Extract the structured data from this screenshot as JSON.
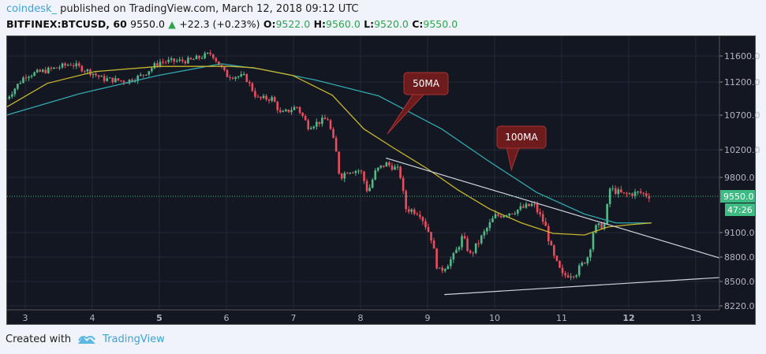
{
  "header": {
    "user": "coindesk_",
    "published": "published on TradingView.com, March 12, 2018 09:12 UTC",
    "symbol": "BITFINEX:BTCUSD, 60",
    "last": "9550.0",
    "change": "+22.3 (+0.23%)",
    "o_label": "O:",
    "o": "9522.0",
    "h_label": "H:",
    "h": "9560.0",
    "l_label": "L:",
    "l": "9520.0",
    "c_label": "C:",
    "c": "9550.0"
  },
  "footer": {
    "created_with": "Created with",
    "brand": "TradingView"
  },
  "colors": {
    "background": "#131722",
    "up": "#53b987",
    "down": "#eb4d5c",
    "ma50": "#c8b62c",
    "ma100": "#30a8b0",
    "annotation": "#6e1b1e",
    "last_price": "#3dbb83"
  },
  "chart_data": {
    "type": "candlestick",
    "interval": "60",
    "x_ticks": [
      "3",
      "4",
      "5",
      "6",
      "7",
      "8",
      "9",
      "10",
      "11",
      "12",
      "13"
    ],
    "y_ticks": [
      "11600.0",
      "11200.0",
      "10700.0",
      "10200.0",
      "9800.0",
      "9100.0",
      "8800.0",
      "8500.0",
      "8220.0"
    ],
    "last_price_label": "9550.0",
    "countdown_label": "47:26",
    "grid": true,
    "price_path": [
      [
        2.72,
        10950
      ],
      [
        3,
        11300
      ],
      [
        3.33,
        11380
      ],
      [
        3.68,
        11480
      ],
      [
        4,
        11340
      ],
      [
        4.15,
        11250
      ],
      [
        4.51,
        11210
      ],
      [
        4.74,
        11300
      ],
      [
        5,
        11510
      ],
      [
        5.46,
        11530
      ],
      [
        5.78,
        11640
      ],
      [
        6,
        11300
      ],
      [
        6.28,
        11280
      ],
      [
        6.46,
        10950
      ],
      [
        6.69,
        10950
      ],
      [
        6.81,
        10710
      ],
      [
        7.05,
        10830
      ],
      [
        7.22,
        10540
      ],
      [
        7.51,
        10650
      ],
      [
        7.63,
        10200
      ],
      [
        7.69,
        9800
      ],
      [
        7.81,
        9900
      ],
      [
        8,
        9900
      ],
      [
        8.11,
        9600
      ],
      [
        8.23,
        9900
      ],
      [
        8.38,
        10000
      ],
      [
        8.58,
        9900
      ],
      [
        8.67,
        9400
      ],
      [
        8.88,
        9350
      ],
      [
        9.05,
        9050
      ],
      [
        9.16,
        8610
      ],
      [
        9.28,
        8700
      ],
      [
        9.4,
        8820
      ],
      [
        9.52,
        9050
      ],
      [
        9.64,
        8820
      ],
      [
        9.81,
        9050
      ],
      [
        10,
        9300
      ],
      [
        10.22,
        9350
      ],
      [
        10.4,
        9400
      ],
      [
        10.58,
        9450
      ],
      [
        10.75,
        9200
      ],
      [
        10.87,
        8820
      ],
      [
        11.01,
        8570
      ],
      [
        11.22,
        8610
      ],
      [
        11.4,
        8820
      ],
      [
        11.48,
        9150
      ],
      [
        11.64,
        9200
      ],
      [
        11.72,
        9650
      ],
      [
        11.93,
        9570
      ],
      [
        12.16,
        9600
      ],
      [
        12.34,
        9550
      ]
    ],
    "ma50": [
      [
        2.72,
        10820
      ],
      [
        3.33,
        11180
      ],
      [
        4.04,
        11360
      ],
      [
        5,
        11440
      ],
      [
        6.06,
        11440
      ],
      [
        6.4,
        11420
      ],
      [
        6.99,
        11300
      ],
      [
        7.58,
        11000
      ],
      [
        8.05,
        10500
      ],
      [
        8.52,
        10210
      ],
      [
        8.99,
        9930
      ],
      [
        9.46,
        9630
      ],
      [
        9.93,
        9390
      ],
      [
        10.4,
        9220
      ],
      [
        10.87,
        9090
      ],
      [
        11.34,
        9070
      ],
      [
        11.69,
        9170
      ],
      [
        12.05,
        9200
      ],
      [
        12.34,
        9220
      ]
    ],
    "ma100": [
      [
        2.72,
        10700
      ],
      [
        3.8,
        11020
      ],
      [
        4.98,
        11300
      ],
      [
        5.92,
        11480
      ],
      [
        6.5,
        11400
      ],
      [
        7.33,
        11230
      ],
      [
        8.27,
        10990
      ],
      [
        9.21,
        10500
      ],
      [
        9.92,
        10030
      ],
      [
        10.63,
        9600
      ],
      [
        11.34,
        9330
      ],
      [
        11.81,
        9220
      ],
      [
        12.34,
        9220
      ]
    ],
    "trendlines": [
      [
        [
          8.38,
          10080
        ],
        [
          13.35,
          8790
        ]
      ],
      [
        [
          9.25,
          8350
        ],
        [
          13.35,
          8548
        ]
      ]
    ],
    "annotations": [
      {
        "text": "50MA",
        "target": [
          8.4,
          10430
        ]
      },
      {
        "text": "100MA",
        "target": [
          10.25,
          9910
        ]
      }
    ]
  }
}
